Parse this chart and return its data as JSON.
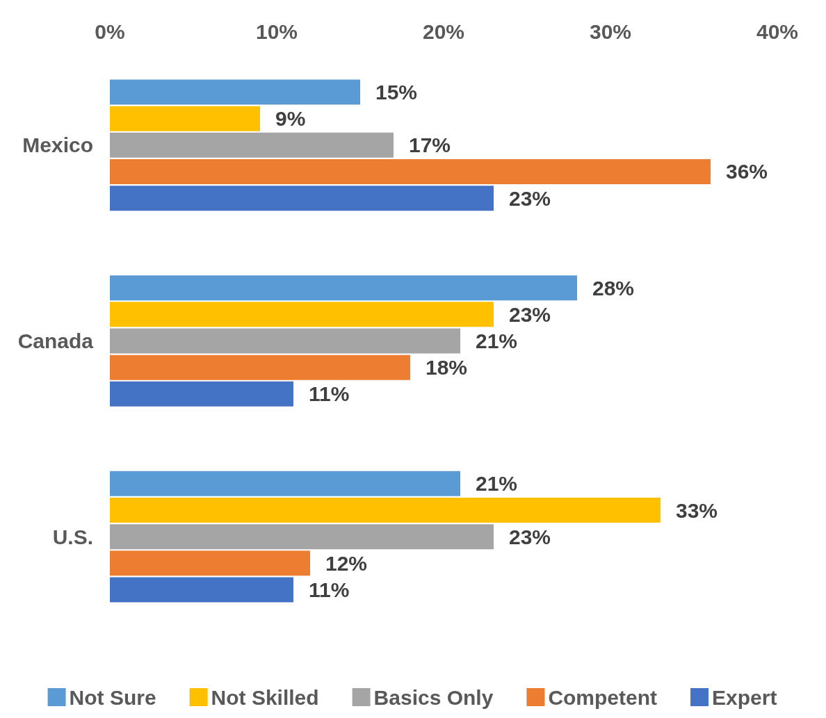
{
  "chart_data": {
    "type": "bar",
    "orientation": "horizontal",
    "categories": [
      "Mexico",
      "Canada",
      "U.S."
    ],
    "series": [
      {
        "name": "Not Sure",
        "color": "#5b9bd5",
        "values": [
          15,
          28,
          21
        ],
        "value_labels": [
          "15%",
          "28%",
          "21%"
        ]
      },
      {
        "name": "Not Skilled",
        "color": "#ffc000",
        "values": [
          9,
          23,
          33
        ],
        "value_labels": [
          "9%",
          "23%",
          "33%"
        ]
      },
      {
        "name": "Basics Only",
        "color": "#a5a5a5",
        "values": [
          17,
          21,
          23
        ],
        "value_labels": [
          "17%",
          "21%",
          "23%"
        ]
      },
      {
        "name": "Competent",
        "color": "#ed7d31",
        "values": [
          36,
          18,
          12
        ],
        "value_labels": [
          "36%",
          "18%",
          "12%"
        ]
      },
      {
        "name": "Expert",
        "color": "#4472c4",
        "values": [
          23,
          11,
          11
        ],
        "value_labels": [
          "23%",
          "11%",
          "11%"
        ]
      }
    ],
    "xlim": [
      0,
      40
    ],
    "xticks": [
      {
        "value": 0,
        "label": "0%"
      },
      {
        "value": 10,
        "label": "10%"
      },
      {
        "value": 20,
        "label": "20%"
      },
      {
        "value": 30,
        "label": "30%"
      },
      {
        "value": 40,
        "label": "40%"
      }
    ],
    "grid": false,
    "legend": "bottom"
  }
}
